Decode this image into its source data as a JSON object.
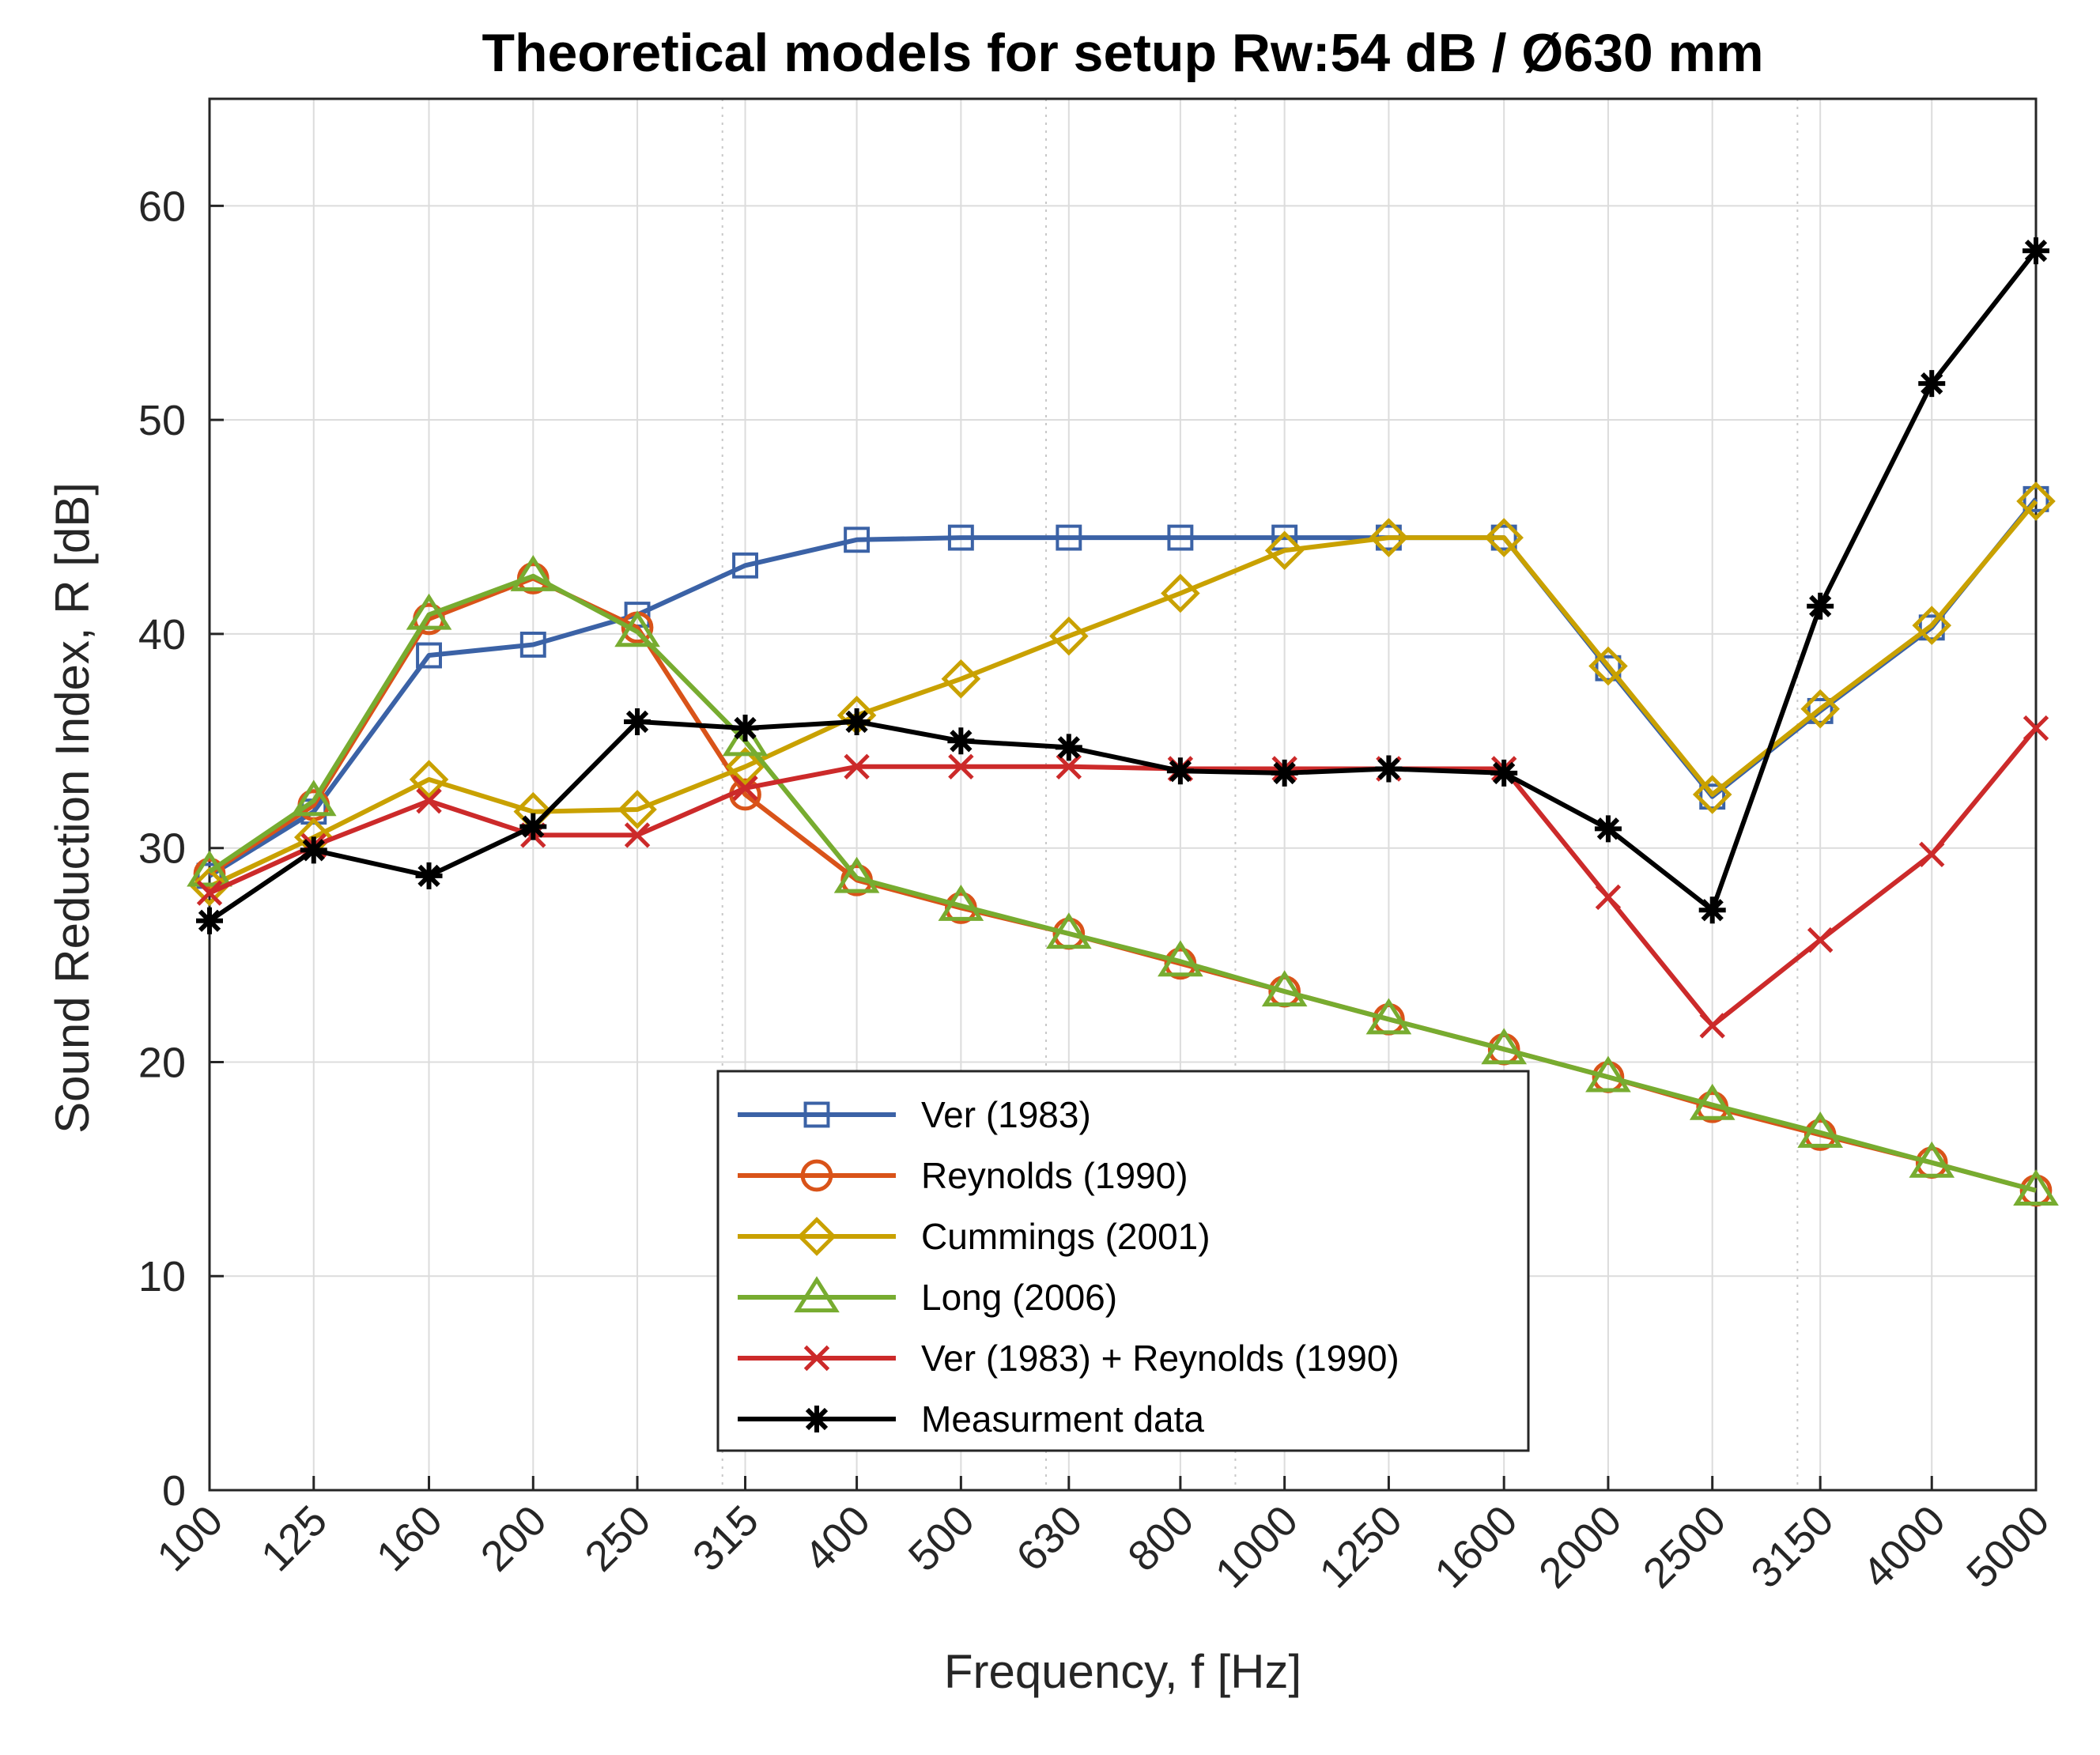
{
  "chart_data": {
    "type": "line",
    "title": "Theoretical models for setup Rw:54 dB / Ø630 mm",
    "xlabel": "Frequency, f [Hz]",
    "ylabel": "Sound Reduction Index, R [dB]",
    "x_scale": "log",
    "x": [
      100,
      125,
      160,
      200,
      250,
      315,
      400,
      500,
      630,
      800,
      1000,
      1250,
      1600,
      2000,
      2500,
      3150,
      4000,
      5000
    ],
    "x_tick_labels": [
      "100",
      "125",
      "160",
      "200",
      "250",
      "315",
      "400",
      "500",
      "630",
      "800",
      "1000",
      "1250",
      "1600",
      "2000",
      "2500",
      "3150",
      "4000",
      "5000"
    ],
    "xlim": [
      100,
      5000
    ],
    "ylim": [
      0,
      65
    ],
    "y_ticks": [
      0,
      10,
      20,
      30,
      40,
      50,
      60
    ],
    "y_tick_labels": [
      "0",
      "10",
      "20",
      "30",
      "40",
      "50",
      "60"
    ],
    "grid": true,
    "legend_position": "bottom-center",
    "series": [
      {
        "name": "Ver (1983)",
        "color": "#3b62a6",
        "marker": "square",
        "values": [
          28.7,
          31.7,
          39.0,
          39.5,
          40.9,
          43.2,
          44.4,
          44.5,
          44.5,
          44.5,
          44.5,
          44.5,
          44.5,
          38.4,
          32.4,
          36.4,
          40.3,
          46.3
        ]
      },
      {
        "name": "Reynolds (1990)",
        "color": "#d95319",
        "marker": "circle",
        "values": [
          28.8,
          32.0,
          40.7,
          42.6,
          40.3,
          32.5,
          28.5,
          27.2,
          26.0,
          24.6,
          23.3,
          22.0,
          20.6,
          19.3,
          17.9,
          16.6,
          15.3,
          14.0
        ]
      },
      {
        "name": "Cummings (2001)",
        "color": "#c9a100",
        "marker": "diamond",
        "values": [
          28.2,
          30.5,
          33.2,
          31.7,
          31.8,
          33.8,
          36.2,
          37.9,
          39.9,
          41.9,
          43.9,
          44.5,
          44.5,
          38.5,
          32.5,
          36.5,
          40.4,
          46.2
        ]
      },
      {
        "name": "Long (2006)",
        "color": "#77ac30",
        "marker": "triangle",
        "values": [
          28.9,
          32.2,
          40.9,
          42.7,
          40.1,
          35.0,
          28.6,
          27.3,
          26.0,
          24.7,
          23.3,
          22.0,
          20.6,
          19.3,
          18.0,
          16.7,
          15.3,
          14.0
        ]
      },
      {
        "name": "Ver (1983) + Reynolds (1990)",
        "color": "#cc2a2a",
        "marker": "x",
        "values": [
          27.9,
          30.1,
          32.2,
          30.6,
          30.6,
          32.8,
          33.8,
          33.8,
          33.8,
          33.7,
          33.7,
          33.7,
          33.7,
          27.7,
          21.7,
          25.7,
          29.7,
          35.6
        ]
      },
      {
        "name": "Measurment data",
        "color": "#000000",
        "marker": "star",
        "values": [
          26.6,
          29.9,
          28.7,
          31.0,
          35.9,
          35.6,
          35.9,
          35.0,
          34.7,
          33.6,
          33.5,
          33.7,
          33.5,
          30.9,
          27.1,
          41.3,
          51.7,
          57.9
        ]
      }
    ]
  }
}
